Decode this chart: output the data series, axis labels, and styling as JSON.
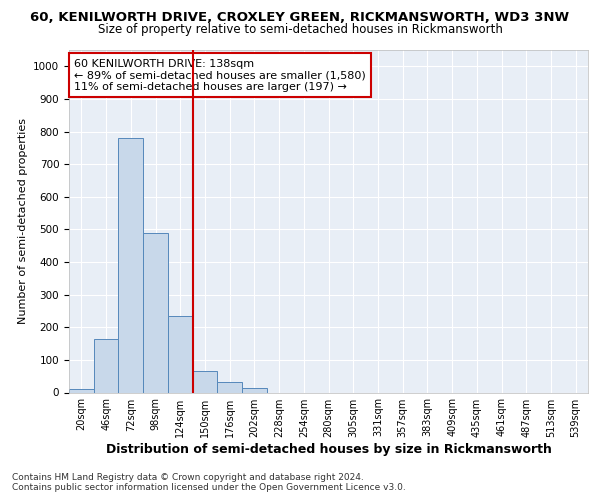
{
  "title_line1": "60, KENILWORTH DRIVE, CROXLEY GREEN, RICKMANSWORTH, WD3 3NW",
  "title_line2": "Size of property relative to semi-detached houses in Rickmansworth",
  "xlabel": "Distribution of semi-detached houses by size in Rickmansworth",
  "ylabel": "Number of semi-detached properties",
  "categories": [
    "20sqm",
    "46sqm",
    "72sqm",
    "98sqm",
    "124sqm",
    "150sqm",
    "176sqm",
    "202sqm",
    "228sqm",
    "254sqm",
    "280sqm",
    "305sqm",
    "331sqm",
    "357sqm",
    "383sqm",
    "409sqm",
    "435sqm",
    "461sqm",
    "487sqm",
    "513sqm",
    "539sqm"
  ],
  "values": [
    10,
    165,
    780,
    490,
    235,
    65,
    33,
    15,
    0,
    0,
    0,
    0,
    0,
    0,
    0,
    0,
    0,
    0,
    0,
    0,
    0
  ],
  "bar_color": "#c8d8ea",
  "bar_edge_color": "#5588bb",
  "annotation_line1": "60 KENILWORTH DRIVE: 138sqm",
  "annotation_line2": "← 89% of semi-detached houses are smaller (1,580)",
  "annotation_line3": "11% of semi-detached houses are larger (197) →",
  "vline_color": "#cc0000",
  "annotation_box_edgecolor": "#cc0000",
  "ylim": [
    0,
    1050
  ],
  "yticks": [
    0,
    100,
    200,
    300,
    400,
    500,
    600,
    700,
    800,
    900,
    1000
  ],
  "footnote1": "Contains HM Land Registry data © Crown copyright and database right 2024.",
  "footnote2": "Contains public sector information licensed under the Open Government Licence v3.0.",
  "bg_color": "#e8eef6",
  "grid_color": "#ffffff",
  "fig_bg_color": "#ffffff",
  "vline_x": 4.5
}
